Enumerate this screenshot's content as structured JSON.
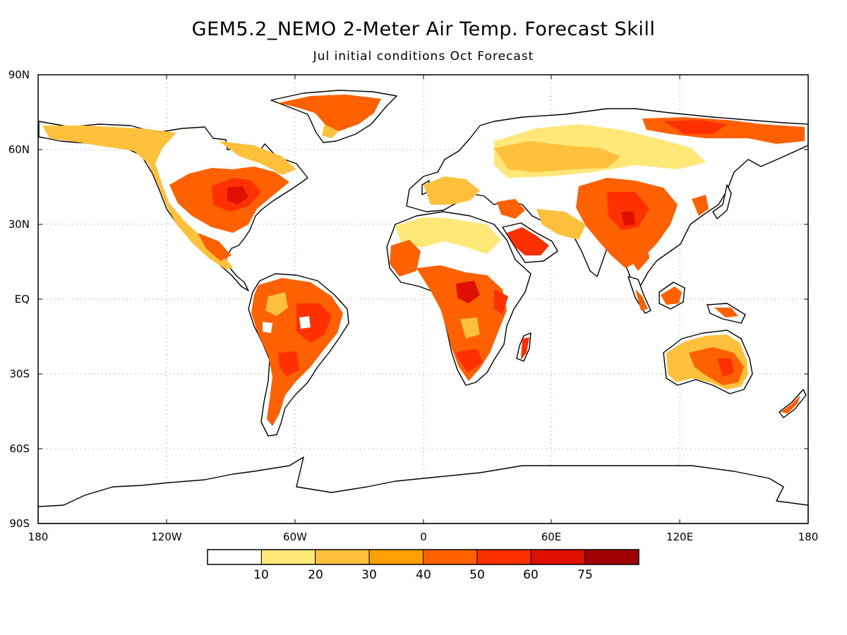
{
  "title": "GEM5.2_NEMO 2-Meter Air Temp. Forecast Skill",
  "subtitle": "Jul initial conditions   Oct Forecast",
  "map": {
    "lat_ticks": [
      "90N",
      "60N",
      "30N",
      "EQ",
      "30S",
      "60S",
      "90S"
    ],
    "lon_ticks": [
      "180",
      "120W",
      "60W",
      "0",
      "60E",
      "120E",
      "180"
    ],
    "gridlines": "dotted",
    "land_outline_color": "#000000"
  },
  "colorbar": {
    "labels": [
      "10",
      "20",
      "30",
      "40",
      "50",
      "60",
      "75"
    ],
    "colors": [
      "#ffffff",
      "#ffe878",
      "#ffc03c",
      "#ffa000",
      "#ff6000",
      "#ff3000",
      "#e01000",
      "#a00000"
    ]
  }
}
